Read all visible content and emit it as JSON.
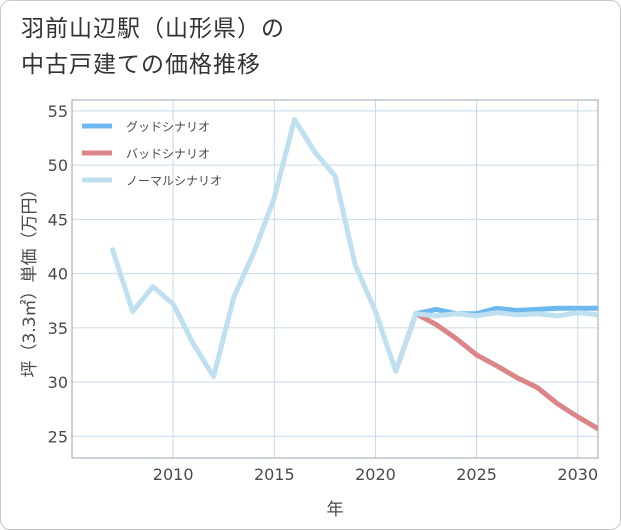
{
  "title_line1": "羽前山辺駅（山形県）の",
  "title_line2": "中古戸建ての価格推移",
  "colors": {
    "good": "#6db8ee",
    "bad": "#dc8589",
    "normal": "#bfe0f0",
    "grid": "#c8dbe8",
    "text": "#4a4a4a"
  },
  "chart_data": {
    "type": "line",
    "title": "羽前山辺駅（山形県）の中古戸建ての価格推移",
    "xlabel": "年",
    "ylabel": "坪（3.3㎡）単価（万円）",
    "xlim": [
      2005,
      2031
    ],
    "ylim": [
      23,
      56
    ],
    "xticks": [
      2010,
      2015,
      2020,
      2025,
      2030
    ],
    "yticks": [
      25,
      30,
      35,
      40,
      45,
      50,
      55
    ],
    "legend_position": "top-left",
    "series": [
      {
        "name": "グッドシナリオ",
        "color_key": "good",
        "x": [
          2022,
          2023,
          2024,
          2025,
          2026,
          2027,
          2028,
          2029,
          2030,
          2031
        ],
        "y": [
          36.3,
          36.7,
          36.3,
          36.3,
          36.8,
          36.6,
          36.7,
          36.8,
          36.8,
          36.8
        ]
      },
      {
        "name": "バッドシナリオ",
        "color_key": "bad",
        "x": [
          2021,
          2022,
          2023,
          2024,
          2025,
          2026,
          2027,
          2028,
          2029,
          2030,
          2031
        ],
        "y": [
          31.0,
          36.3,
          35.3,
          34.0,
          32.5,
          31.5,
          30.4,
          29.5,
          28.0,
          26.8,
          25.7
        ]
      },
      {
        "name": "ノーマルシナリオ",
        "color_key": "normal",
        "x": [
          2007,
          2008,
          2009,
          2010,
          2011,
          2012,
          2013,
          2014,
          2015,
          2016,
          2017,
          2018,
          2019,
          2020,
          2021,
          2022,
          2023,
          2024,
          2025,
          2026,
          2027,
          2028,
          2029,
          2030,
          2031
        ],
        "y": [
          42.2,
          36.5,
          38.8,
          37.2,
          33.5,
          30.5,
          37.8,
          42.0,
          47.0,
          54.2,
          51.2,
          49.0,
          40.8,
          36.5,
          31.0,
          36.3,
          36.1,
          36.3,
          36.1,
          36.4,
          36.2,
          36.3,
          36.1,
          36.4,
          36.2
        ]
      }
    ]
  }
}
